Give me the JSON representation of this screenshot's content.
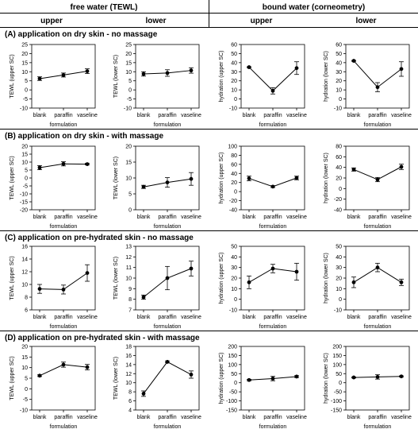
{
  "headers": {
    "free_water": "free water (TEWL)",
    "bound_water": "bound water (corneometry)",
    "upper": "upper",
    "lower": "lower"
  },
  "sections": [
    "(A)  application on dry skin - no massage",
    "(B)  application on dry skin - with massage",
    "(C)  application on pre-hydrated skin - no massage",
    "(D)  application on pre-hydrated skin - with massage"
  ],
  "colors": {
    "line": "#000000",
    "marker": "#000000"
  },
  "chart_data": [
    {
      "type": "line",
      "panel": "A-free-upper",
      "categories": [
        "blank",
        "paraffin",
        "vaseline"
      ],
      "xlabel": "formulation",
      "ylabel": "TEWL (upper SC)",
      "ylim": [
        -10,
        25
      ],
      "yticks": [
        -10,
        -5,
        0,
        5,
        10,
        15,
        20,
        25
      ],
      "values": [
        6.2,
        8.2,
        10.3
      ],
      "err": [
        1.0,
        1.1,
        1.3
      ]
    },
    {
      "type": "line",
      "panel": "A-free-lower",
      "categories": [
        "blank",
        "paraffin",
        "vaseline"
      ],
      "xlabel": "formulation",
      "ylabel": "TEWL (lower SC)",
      "ylim": [
        -10,
        25
      ],
      "yticks": [
        -10,
        -5,
        0,
        5,
        10,
        15,
        20,
        25
      ],
      "values": [
        8.8,
        9.3,
        10.7
      ],
      "err": [
        1.2,
        1.8,
        1.5
      ]
    },
    {
      "type": "line",
      "panel": "A-bound-upper",
      "categories": [
        "blank",
        "paraffin",
        "vaseline"
      ],
      "xlabel": "formulation",
      "ylabel": "hydration (upper SC)",
      "ylim": [
        -10,
        60
      ],
      "yticks": [
        -10,
        0,
        10,
        20,
        30,
        40,
        50,
        60
      ],
      "values": [
        35,
        9,
        34
      ],
      "err": [
        0.5,
        3.5,
        7
      ]
    },
    {
      "type": "line",
      "panel": "A-bound-lower",
      "categories": [
        "blank",
        "paraffin",
        "vaseline"
      ],
      "xlabel": "formulation",
      "ylabel": "hydration (lower SC)",
      "ylim": [
        -10,
        60
      ],
      "yticks": [
        -10,
        0,
        10,
        20,
        30,
        40,
        50,
        60
      ],
      "values": [
        42,
        13,
        33
      ],
      "err": [
        0.5,
        5,
        8
      ]
    },
    {
      "type": "line",
      "panel": "B-free-upper",
      "categories": [
        "blank",
        "paraffin",
        "vaseline"
      ],
      "xlabel": "formulation",
      "ylabel": "TEWL (upper SC)",
      "ylim": [
        -20,
        20
      ],
      "yticks": [
        -20,
        -15,
        -10,
        -5,
        0,
        5,
        10,
        15,
        20
      ],
      "values": [
        6.5,
        8.9,
        8.7
      ],
      "err": [
        1.3,
        1.3,
        0.5
      ]
    },
    {
      "type": "line",
      "panel": "B-free-lower",
      "categories": [
        "blank",
        "paraffin",
        "vaseline"
      ],
      "xlabel": "formulation",
      "ylabel": "TEWL (lower SC)",
      "ylim": [
        0,
        20
      ],
      "yticks": [
        0,
        5,
        10,
        15,
        20
      ],
      "values": [
        7.2,
        8.6,
        9.7
      ],
      "err": [
        0.5,
        1.5,
        2.0
      ]
    },
    {
      "type": "line",
      "panel": "B-bound-upper",
      "categories": [
        "blank",
        "paraffin",
        "vaseline"
      ],
      "xlabel": "formulation",
      "ylabel": "hydration (upper SC)",
      "ylim": [
        -40,
        100
      ],
      "yticks": [
        -40,
        -20,
        0,
        20,
        40,
        60,
        80,
        100
      ],
      "values": [
        29,
        11,
        30
      ],
      "err": [
        5,
        2,
        4
      ]
    },
    {
      "type": "line",
      "panel": "B-bound-lower",
      "categories": [
        "blank",
        "paraffin",
        "vaseline"
      ],
      "xlabel": "formulation",
      "ylabel": "hydration (lower SC)",
      "ylim": [
        -40,
        80
      ],
      "yticks": [
        -40,
        -20,
        0,
        20,
        40,
        60,
        80
      ],
      "values": [
        36,
        17,
        41
      ],
      "err": [
        3,
        4,
        5
      ]
    },
    {
      "type": "line",
      "panel": "C-free-upper",
      "categories": [
        "blank",
        "paraffin",
        "vaseline"
      ],
      "xlabel": "formulation",
      "ylabel": "TEWL (upper SC)",
      "ylim": [
        6,
        16
      ],
      "yticks": [
        6,
        8,
        10,
        12,
        14,
        16
      ],
      "values": [
        9.3,
        9.2,
        11.8
      ],
      "err": [
        0.7,
        0.7,
        1.3
      ]
    },
    {
      "type": "line",
      "panel": "C-free-lower",
      "categories": [
        "blank",
        "paraffin",
        "vaseline"
      ],
      "xlabel": "formulation",
      "ylabel": "TEWL (lower SC)",
      "ylim": [
        7,
        13
      ],
      "yticks": [
        7,
        8,
        9,
        10,
        11,
        12,
        13
      ],
      "values": [
        8.2,
        10.0,
        10.9
      ],
      "err": [
        0.2,
        1.1,
        0.7
      ]
    },
    {
      "type": "line",
      "panel": "C-bound-upper",
      "categories": [
        "blank",
        "paraffin",
        "vaseline"
      ],
      "xlabel": "formulation",
      "ylabel": "hydration (upper SC)",
      "ylim": [
        -10,
        50
      ],
      "yticks": [
        -10,
        0,
        10,
        20,
        30,
        40,
        50
      ],
      "values": [
        16,
        29,
        26
      ],
      "err": [
        6,
        4,
        8
      ]
    },
    {
      "type": "line",
      "panel": "C-bound-lower",
      "categories": [
        "blank",
        "paraffin",
        "vaseline"
      ],
      "xlabel": "formulation",
      "ylabel": "hydration (lower SC)",
      "ylim": [
        -10,
        50
      ],
      "yticks": [
        -10,
        0,
        10,
        20,
        30,
        40,
        50
      ],
      "values": [
        16,
        30,
        16
      ],
      "err": [
        5,
        4,
        3
      ]
    },
    {
      "type": "line",
      "panel": "D-free-upper",
      "categories": [
        "blank",
        "paraffin",
        "vaseline"
      ],
      "xlabel": "formulation",
      "ylabel": "TEWL (upper SC)",
      "ylim": [
        -10,
        20
      ],
      "yticks": [
        -10,
        -5,
        0,
        5,
        10,
        15,
        20
      ],
      "values": [
        6.2,
        11.4,
        10.2
      ],
      "err": [
        0.4,
        1.2,
        1.3
      ]
    },
    {
      "type": "line",
      "panel": "D-free-lower",
      "categories": [
        "blank",
        "paraffin",
        "vaseline"
      ],
      "xlabel": "formulation",
      "ylabel": "TEWL (lower SC)",
      "ylim": [
        4,
        18
      ],
      "yticks": [
        4,
        6,
        8,
        10,
        12,
        14,
        16,
        18
      ],
      "values": [
        7.6,
        14.6,
        11.8
      ],
      "err": [
        0.6,
        0.2,
        0.8
      ]
    },
    {
      "type": "line",
      "panel": "D-bound-upper",
      "categories": [
        "blank",
        "paraffin",
        "vaseline"
      ],
      "xlabel": "formulation",
      "ylabel": "hydration (upper SC)",
      "ylim": [
        -150,
        200
      ],
      "yticks": [
        -150,
        -100,
        -50,
        0,
        50,
        100,
        150,
        200
      ],
      "values": [
        15,
        23,
        34
      ],
      "err": [
        4,
        12,
        5
      ]
    },
    {
      "type": "line",
      "panel": "D-bound-lower",
      "categories": [
        "blank",
        "paraffin",
        "vaseline"
      ],
      "xlabel": "formulation",
      "ylabel": "hydration (lower SC)",
      "ylim": [
        -150,
        200
      ],
      "yticks": [
        -150,
        -100,
        -50,
        0,
        50,
        100,
        150,
        200
      ],
      "values": [
        29,
        32,
        35
      ],
      "err": [
        3,
        12,
        3
      ]
    }
  ]
}
